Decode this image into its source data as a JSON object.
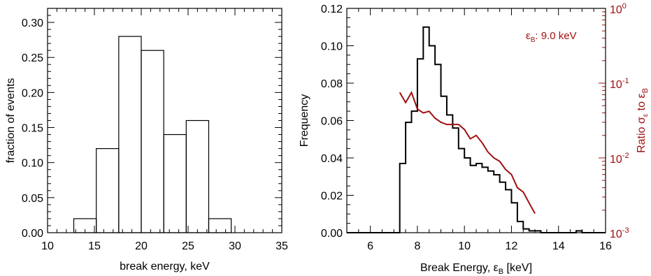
{
  "chart_data": [
    {
      "type": "bar",
      "xlabel": "break energy, keV",
      "ylabel": "fraction of events",
      "xlim": [
        10,
        35
      ],
      "ylim": [
        0,
        0.32
      ],
      "xticks": [
        "10",
        "15",
        "20",
        "25",
        "30",
        "35"
      ],
      "yticks": [
        "0.00",
        "0.05",
        "0.10",
        "0.15",
        "0.20",
        "0.25",
        "0.30"
      ],
      "bin_edges": [
        12.8,
        15.2,
        17.6,
        20.0,
        22.4,
        24.8,
        27.2,
        29.6
      ],
      "values": [
        0.02,
        0.12,
        0.28,
        0.26,
        0.14,
        0.16,
        0.02
      ],
      "grid": false
    },
    {
      "type": "line",
      "xlabel": "Break Energy, ε_B [keV]",
      "xlabel_parts": [
        "Break Energy, ε",
        "B",
        " [keV]"
      ],
      "ylabel": "Frequency",
      "y2label": "Ratio σ_ε to ε_B",
      "y2label_parts": [
        "Ratio σ",
        "ε",
        " to ε",
        "B"
      ],
      "annotation": "ε_B: 9.0 keV",
      "annotation_parts": [
        "ε",
        "B",
        ": 9.0 keV"
      ],
      "xlim": [
        5,
        16
      ],
      "ylim": [
        0,
        0.12
      ],
      "y2lim": [
        0.001,
        1
      ],
      "y2scale": "log",
      "xticks": [
        "6",
        "8",
        "10",
        "12",
        "14",
        "16"
      ],
      "yticks": [
        "0.00",
        "0.02",
        "0.04",
        "0.06",
        "0.08",
        "0.10",
        "0.12"
      ],
      "y2ticks": [
        {
          "base": "10",
          "exp": "-3"
        },
        {
          "base": "10",
          "exp": "-2"
        },
        {
          "base": "10",
          "exp": "-1"
        },
        {
          "base": "10",
          "exp": "0"
        }
      ],
      "colors": {
        "frequency": "#000000",
        "ratio": "#a01010"
      },
      "grid": false,
      "series": [
        {
          "kind": "step",
          "axis": "left",
          "bin_width": 0.25,
          "x": [
            5.0,
            5.25,
            5.5,
            5.75,
            6.0,
            6.25,
            6.5,
            6.75,
            7.0,
            7.25,
            7.5,
            7.75,
            8.0,
            8.25,
            8.5,
            8.75,
            9.0,
            9.25,
            9.5,
            9.75,
            10.0,
            10.25,
            10.5,
            10.75,
            11.0,
            11.25,
            11.5,
            11.75,
            12.0,
            12.25,
            12.5,
            12.75,
            13.0,
            13.25,
            13.5,
            13.75,
            14.0,
            14.25,
            14.5,
            14.75,
            15.0,
            15.25,
            15.5,
            15.75
          ],
          "values": [
            0,
            0,
            0,
            0,
            0,
            0,
            0,
            0,
            0,
            0.037,
            0.059,
            0.065,
            0.093,
            0.11,
            0.1,
            0.09,
            0.073,
            0.063,
            0.056,
            0.045,
            0.04,
            0.036,
            0.037,
            0.035,
            0.033,
            0.031,
            0.027,
            0.023,
            0.016,
            0.006,
            0.002,
            0.001,
            0.001,
            0,
            0,
            0,
            0,
            0,
            0,
            0.001,
            0,
            0,
            0,
            0
          ]
        },
        {
          "kind": "line",
          "axis": "right",
          "x": [
            7.25,
            7.5,
            7.75,
            8.0,
            8.25,
            8.5,
            8.75,
            9.0,
            9.25,
            9.5,
            9.75,
            10.0,
            10.25,
            10.5,
            10.75,
            11.0,
            11.25,
            11.5,
            11.75,
            12.0,
            12.25,
            12.5,
            12.75,
            13.0
          ],
          "values": [
            0.075,
            0.055,
            0.075,
            0.045,
            0.04,
            0.042,
            0.034,
            0.03,
            0.028,
            0.028,
            0.028,
            0.024,
            0.018,
            0.02,
            0.016,
            0.012,
            0.01,
            0.009,
            0.007,
            0.006,
            0.004,
            0.0035,
            0.0025,
            0.0018
          ]
        }
      ]
    }
  ]
}
